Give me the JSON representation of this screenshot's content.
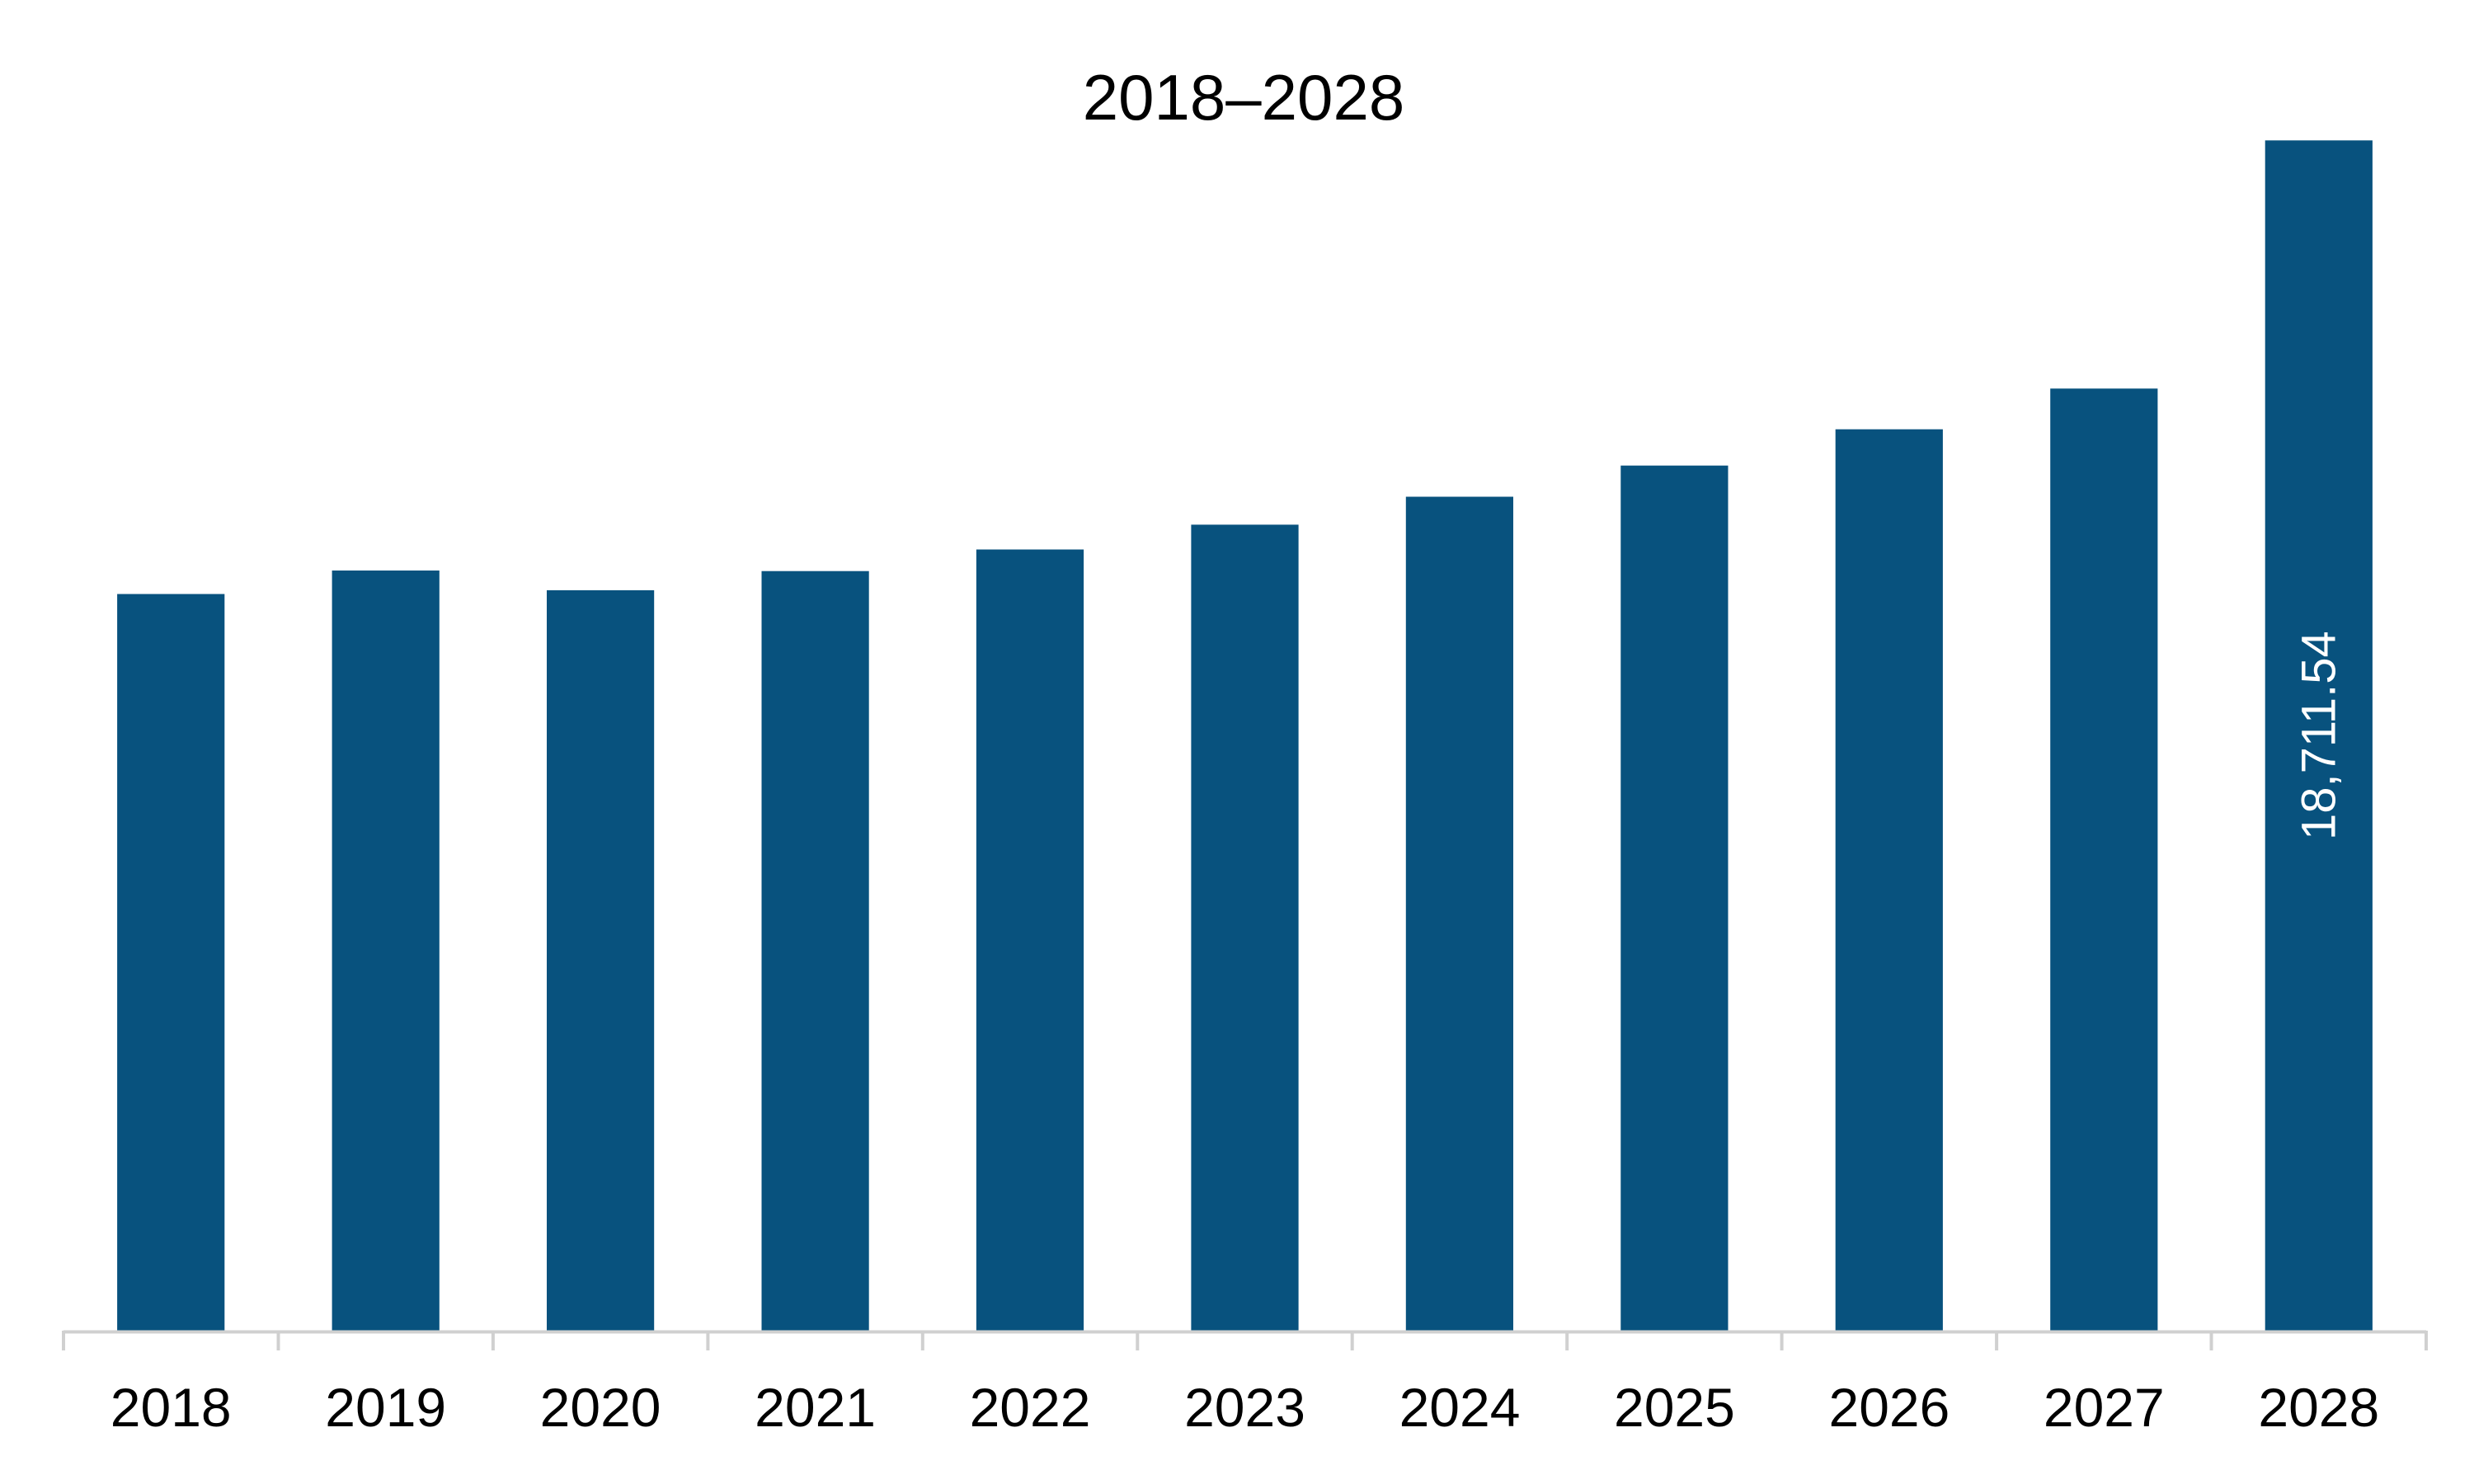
{
  "chart_data": {
    "type": "bar",
    "title": "2018–2028",
    "xlabel": "",
    "ylabel": "",
    "categories": [
      "2018",
      "2019",
      "2020",
      "2021",
      "2022",
      "2023",
      "2024",
      "2025",
      "2026",
      "2027",
      "2028"
    ],
    "values": [
      11580,
      11950,
      11640,
      11940,
      12280,
      12670,
      13110,
      13600,
      14170,
      14810,
      18711.54
    ],
    "data_labels": [
      "",
      "",
      "",
      "",
      "",
      "",
      "",
      "",
      "",
      "",
      "18,711.54"
    ],
    "ylim": [
      0,
      19000
    ],
    "grid": false,
    "legend": "none",
    "bar_color": "#08527E",
    "axis_color": "#D0D0D0",
    "text_color": "#000000",
    "label_color": "#FFFFFF"
  }
}
